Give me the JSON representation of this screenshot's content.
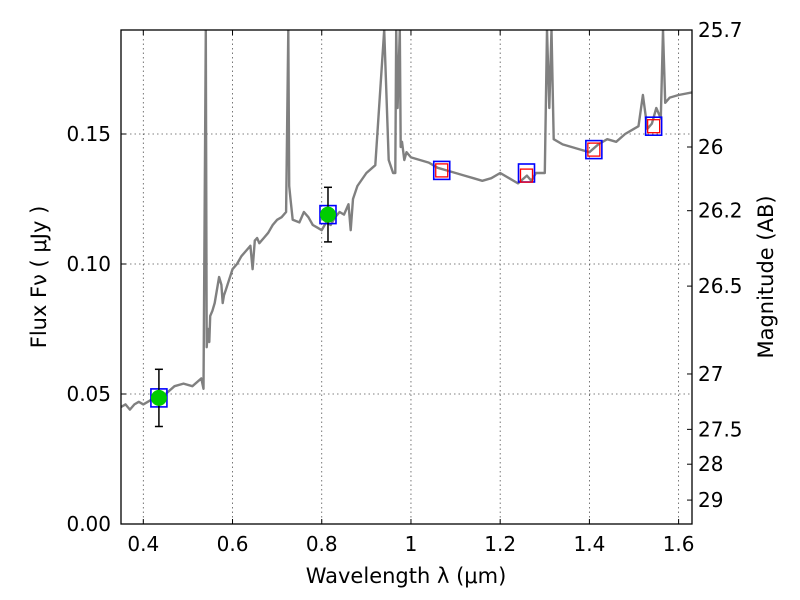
{
  "chart_data": {
    "type": "line",
    "title": "",
    "xlabel": "Wavelength  λ (μm)",
    "ylabel": "Flux  Fν  ( μJy )",
    "ylabel_right": "Magnitude (AB)",
    "xlim": [
      0.35,
      1.63
    ],
    "ylim": [
      0.0,
      0.19
    ],
    "grid": true,
    "legend": "none",
    "x_ticks": [
      {
        "value": 0.4,
        "label": "0.4"
      },
      {
        "value": 0.6,
        "label": "0.6"
      },
      {
        "value": 0.8,
        "label": "0.8"
      },
      {
        "value": 1.0,
        "label": "1"
      },
      {
        "value": 1.2,
        "label": "1.2"
      },
      {
        "value": 1.4,
        "label": "1.4"
      },
      {
        "value": 1.6,
        "label": "1.6"
      }
    ],
    "y_ticks": [
      {
        "value": 0.0,
        "label": "0.00"
      },
      {
        "value": 0.05,
        "label": "0.05"
      },
      {
        "value": 0.1,
        "label": "0.10"
      },
      {
        "value": 0.15,
        "label": "0.15"
      }
    ],
    "right_ticks": [
      {
        "flux": 0.19,
        "label": "25.7"
      },
      {
        "flux": 0.145,
        "label": "26"
      },
      {
        "flux": 0.1205,
        "label": "26.2"
      },
      {
        "flux": 0.0915,
        "label": "26.5"
      },
      {
        "flux": 0.0577,
        "label": "27"
      },
      {
        "flux": 0.0364,
        "label": "27.5"
      },
      {
        "flux": 0.023,
        "label": "28"
      },
      {
        "flux": 0.0092,
        "label": "29"
      }
    ],
    "series": [
      {
        "kind": "model_spectrum",
        "color": "#808080",
        "x": [
          0.35,
          0.36,
          0.37,
          0.38,
          0.39,
          0.4,
          0.41,
          0.42,
          0.43,
          0.44,
          0.45,
          0.47,
          0.49,
          0.51,
          0.53,
          0.535,
          0.54,
          0.542,
          0.545,
          0.548,
          0.55,
          0.555,
          0.56,
          0.57,
          0.575,
          0.578,
          0.581,
          0.585,
          0.6,
          0.61,
          0.62,
          0.63,
          0.64,
          0.645,
          0.65,
          0.655,
          0.66,
          0.67,
          0.68,
          0.69,
          0.7,
          0.71,
          0.72,
          0.725,
          0.727,
          0.73,
          0.735,
          0.75,
          0.76,
          0.77,
          0.78,
          0.79,
          0.8,
          0.81,
          0.82,
          0.83,
          0.84,
          0.85,
          0.86,
          0.865,
          0.87,
          0.88,
          0.9,
          0.92,
          0.94,
          0.95,
          0.96,
          0.965,
          0.967,
          0.97,
          0.975,
          0.977,
          0.98,
          0.985,
          0.99,
          1.0,
          1.02,
          1.04,
          1.06,
          1.08,
          1.1,
          1.12,
          1.14,
          1.16,
          1.18,
          1.2,
          1.22,
          1.24,
          1.26,
          1.27,
          1.28,
          1.3,
          1.305,
          1.31,
          1.315,
          1.32,
          1.34,
          1.36,
          1.38,
          1.4,
          1.42,
          1.44,
          1.46,
          1.48,
          1.5,
          1.51,
          1.52,
          1.53,
          1.54,
          1.55,
          1.56,
          1.565,
          1.57,
          1.58,
          1.6,
          1.63
        ],
        "y": [
          0.045,
          0.046,
          0.044,
          0.046,
          0.047,
          0.046,
          0.047,
          0.048,
          0.049,
          0.049,
          0.05,
          0.053,
          0.054,
          0.053,
          0.056,
          0.052,
          0.19,
          0.068,
          0.075,
          0.07,
          0.08,
          0.082,
          0.085,
          0.095,
          0.092,
          0.085,
          0.088,
          0.09,
          0.098,
          0.1,
          0.103,
          0.105,
          0.107,
          0.098,
          0.109,
          0.11,
          0.108,
          0.11,
          0.112,
          0.115,
          0.117,
          0.118,
          0.12,
          0.19,
          0.13,
          0.125,
          0.117,
          0.116,
          0.12,
          0.118,
          0.115,
          0.114,
          0.113,
          0.116,
          0.115,
          0.118,
          0.12,
          0.119,
          0.123,
          0.113,
          0.125,
          0.13,
          0.135,
          0.138,
          0.19,
          0.14,
          0.135,
          0.135,
          0.19,
          0.16,
          0.19,
          0.145,
          0.147,
          0.14,
          0.143,
          0.141,
          0.14,
          0.139,
          0.137,
          0.136,
          0.135,
          0.134,
          0.133,
          0.132,
          0.133,
          0.135,
          0.133,
          0.131,
          0.134,
          0.132,
          0.135,
          0.135,
          0.19,
          0.16,
          0.19,
          0.148,
          0.146,
          0.145,
          0.144,
          0.143,
          0.146,
          0.148,
          0.147,
          0.15,
          0.152,
          0.153,
          0.165,
          0.152,
          0.154,
          0.16,
          0.156,
          0.19,
          0.162,
          0.164,
          0.165,
          0.166
        ]
      },
      {
        "kind": "band_model",
        "marker": "square",
        "color": "#0000ff",
        "x": [
          0.435,
          0.814,
          1.069,
          1.259,
          1.41,
          1.544
        ],
        "y": [
          0.0485,
          0.119,
          0.136,
          0.135,
          0.144,
          0.153
        ]
      },
      {
        "kind": "upper_limit",
        "marker": "square",
        "color": "#ff0000",
        "x": [
          1.069,
          1.259,
          1.41,
          1.544
        ],
        "y": [
          0.136,
          0.134,
          0.144,
          0.153
        ]
      },
      {
        "kind": "observed",
        "marker": "circle",
        "color": "#00cc00",
        "x": [
          0.435,
          0.814
        ],
        "y": [
          0.0485,
          0.119
        ],
        "yerr": [
          0.011,
          0.0105
        ]
      }
    ]
  }
}
